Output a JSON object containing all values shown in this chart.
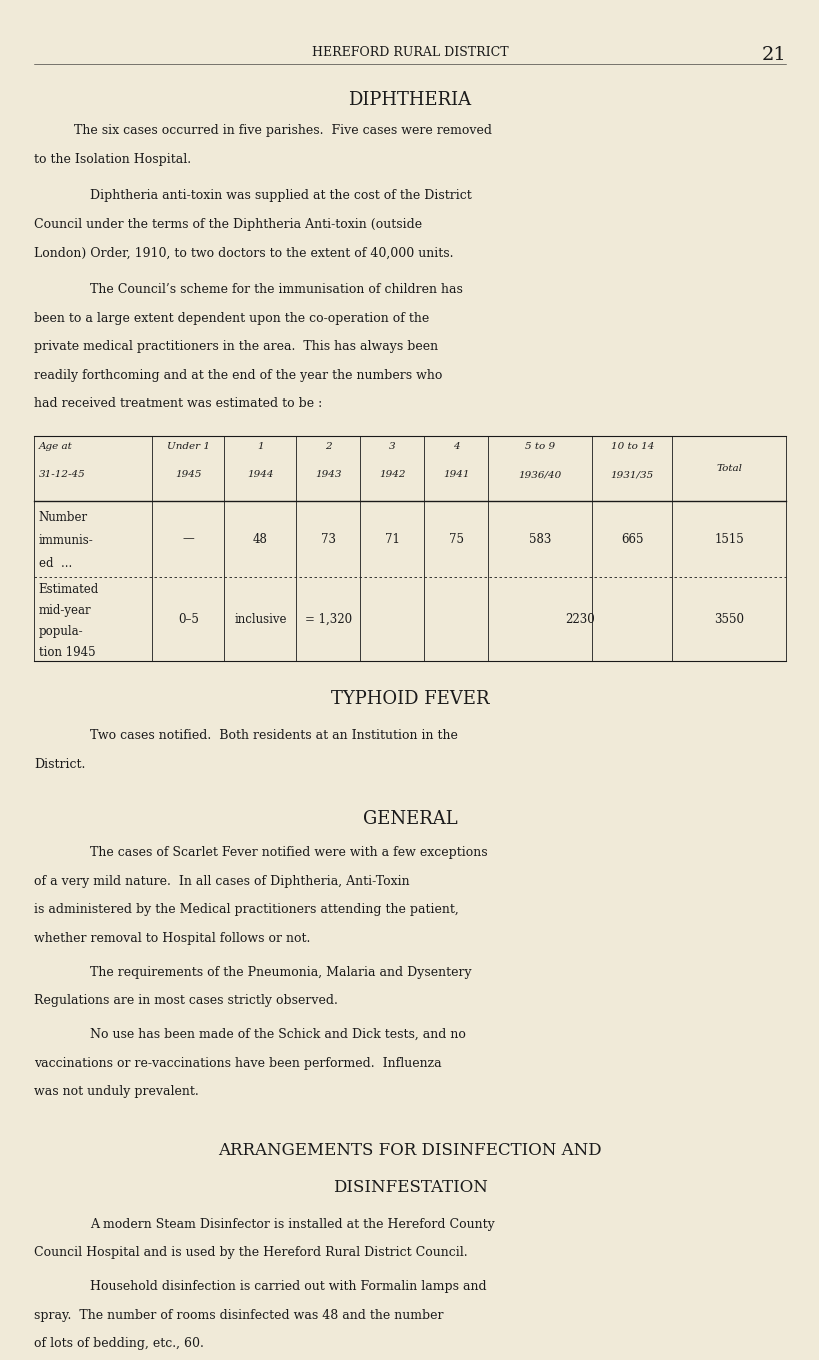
{
  "bg_color": "#f0ead8",
  "text_color": "#1a1a1a",
  "page_width": 8.0,
  "page_height": 13.0,
  "header_text": "HEREFORD RURAL DISTRICT",
  "page_number": "21",
  "section1_title": "DIPHTHERIA",
  "para1": "The six cases occurred in five parishes.  Five cases were removed\nto the Isolation Hospital.",
  "para2": "Diphtheria anti-toxin was supplied at the cost of the District\nCouncil under the terms of the Diphtheria Anti-toxin (outside\nLondon) Order, 1910, to two doctors to the extent of 40,000 units.",
  "para3": "The Council’s scheme for the immunisation of children has\nbeen to a large extent dependent upon the co-operation of the\nprivate medical practitioners in the area.  This has always been\nreadily forthcoming and at the end of the year the numbers who\nhad received treatment was estimated to be :",
  "table_col_headers_line1": [
    "Age at",
    "Under 1",
    "1",
    "2",
    "3",
    "4",
    "5 to 9",
    "10 to 14",
    ""
  ],
  "table_col_headers_line2": [
    "31-12-45",
    "1945",
    "1944",
    "1943",
    "1942",
    "1941",
    "1936/40",
    "1931/35",
    "Total"
  ],
  "table_row1_label": [
    "Number",
    "immunis-",
    "ed  ..."
  ],
  "table_row1_values": [
    "—",
    "48",
    "73",
    "71",
    "75",
    "583",
    "665",
    "1515"
  ],
  "table_row2_label": [
    "Estimated",
    "mid-year",
    "popula-",
    "tion 1945"
  ],
  "table_row2_values": [
    "0–5",
    "inclusive",
    "= 1,320",
    "",
    "",
    "2230",
    "",
    "3550"
  ],
  "section2_title": "TYPHOID FEVER",
  "para4": "Two cases notified.  Both residents at an Institution in the\nDistrict.",
  "section3_title": "GENERAL",
  "para5": "The cases of Scarlet Fever notified were with a few exceptions\nof a very mild nature.  In all cases of Diphtheria, Anti-Toxin\nis administered by the Medical practitioners attending the patient,\nwhether removal to Hospital follows or not.",
  "para6": "The requirements of the Pneumonia, Malaria and Dysentery\nRegulations are in most cases strictly observed.",
  "para7": "No use has been made of the Schick and Dick tests, and no\nvaccinations or re-vaccinations have been performed.  Influenza\nwas not unduly prevalent.",
  "section4_title_l1": "ARRANGEMENTS FOR DISINFECTION AND",
  "section4_title_l2": "DISINFESTATION",
  "para8": "A modern Steam Disinfector is installed at the Hereford County\nCouncil Hospital and is used by the Hereford Rural District Council.",
  "para9": "Household disinfection is carried out with Formalin lamps and\nspray.  The number of rooms disinfected was 48 and the number\nof lots of bedding, etc., 60."
}
